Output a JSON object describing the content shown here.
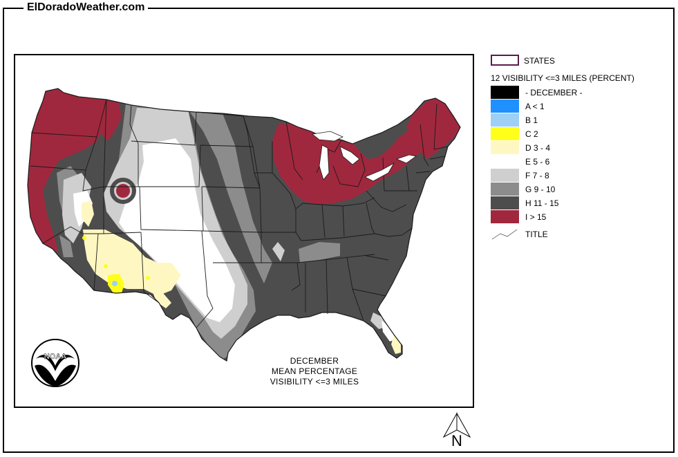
{
  "site": {
    "title": "ElDoradoWeather.com"
  },
  "legend": {
    "states_label": "STATES",
    "heading": "12 VISIBILITY <=3 MILES (PERCENT)",
    "items": [
      {
        "label": "- DECEMBER -",
        "color": "#000000"
      },
      {
        "label": "A < 1",
        "color": "#1e90ff"
      },
      {
        "label": "B 1",
        "color": "#9ecff5"
      },
      {
        "label": "C 2",
        "color": "#ffff1a"
      },
      {
        "label": "D 3 - 4",
        "color": "#fff7c2"
      },
      {
        "label": "E 5 - 6",
        "color": "#ffffff"
      },
      {
        "label": "F 7 - 8",
        "color": "#cfcfcf"
      },
      {
        "label": "G 9 - 10",
        "color": "#8c8c8c"
      },
      {
        "label": "H 11 - 15",
        "color": "#4d4d4d"
      },
      {
        "label": "I > 15",
        "color": "#a0283e"
      }
    ],
    "title_label": "TITLE"
  },
  "caption": {
    "line1": "DECEMBER",
    "line2": "MEAN PERCENTAGE",
    "line3": "VISIBILITY <=3 MILES"
  },
  "logo": {
    "text": "NOAA",
    "icon": "noaa-logo"
  },
  "compass": {
    "letter": "N",
    "icon": "north-arrow-icon"
  }
}
